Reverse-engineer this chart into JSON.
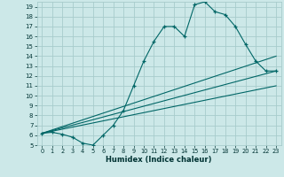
{
  "xlabel": "Humidex (Indice chaleur)",
  "bg_color": "#cce8e8",
  "grid_color": "#a8cccc",
  "line_color": "#006666",
  "xlim": [
    -0.5,
    23.5
  ],
  "ylim": [
    5,
    19.5
  ],
  "xticks": [
    0,
    1,
    2,
    3,
    4,
    5,
    6,
    7,
    8,
    9,
    10,
    11,
    12,
    13,
    14,
    15,
    16,
    17,
    18,
    19,
    20,
    21,
    22,
    23
  ],
  "yticks": [
    5,
    6,
    7,
    8,
    9,
    10,
    11,
    12,
    13,
    14,
    15,
    16,
    17,
    18,
    19
  ],
  "main_curve_x": [
    0,
    1,
    2,
    3,
    4,
    5,
    6,
    7,
    8,
    9,
    10,
    11,
    12,
    13,
    14,
    15,
    16,
    17,
    18,
    19,
    20,
    21,
    22,
    23
  ],
  "main_curve_y": [
    6.2,
    6.3,
    6.1,
    5.8,
    5.2,
    5.0,
    6.0,
    7.0,
    8.5,
    11.0,
    13.5,
    15.5,
    17.0,
    17.0,
    16.0,
    19.2,
    19.5,
    18.5,
    18.2,
    17.0,
    15.2,
    13.5,
    12.5,
    12.5
  ],
  "line1_x": [
    0,
    23
  ],
  "line1_y": [
    6.2,
    14.0
  ],
  "line2_x": [
    0,
    23
  ],
  "line2_y": [
    6.2,
    12.5
  ],
  "line3_x": [
    0,
    23
  ],
  "line3_y": [
    6.2,
    11.0
  ]
}
